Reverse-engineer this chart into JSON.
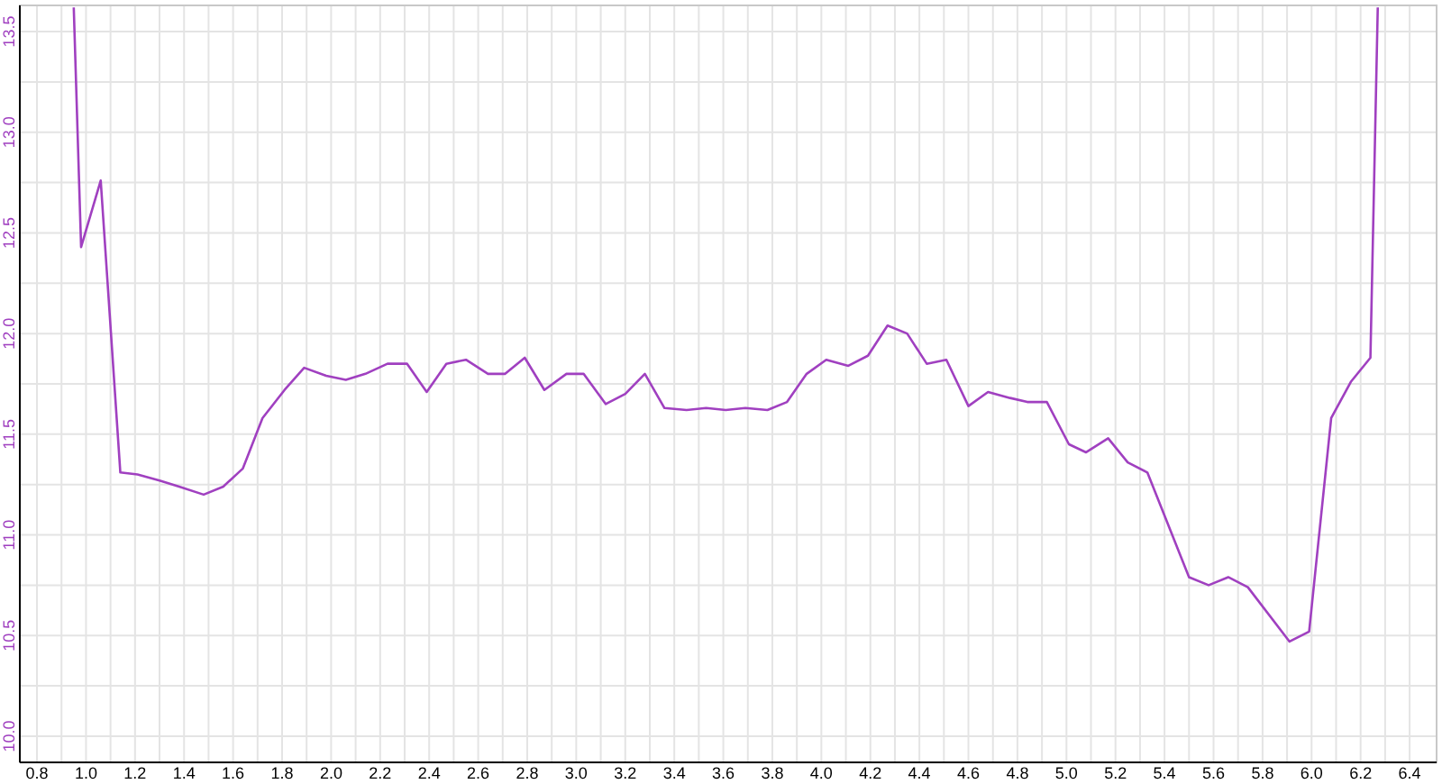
{
  "chart_data": {
    "type": "line",
    "xlim": [
      0.73,
      6.51
    ],
    "ylim": [
      9.87,
      13.63
    ],
    "xticks": [
      {
        "value": 0.8,
        "label": "0.8"
      },
      {
        "value": 0.9,
        "label": null
      },
      {
        "value": 1.0,
        "label": "1.0"
      },
      {
        "value": 1.1,
        "label": null
      },
      {
        "value": 1.2,
        "label": "1.2"
      },
      {
        "value": 1.3,
        "label": null
      },
      {
        "value": 1.4,
        "label": "1.4"
      },
      {
        "value": 1.5,
        "label": null
      },
      {
        "value": 1.6,
        "label": "1.6"
      },
      {
        "value": 1.7,
        "label": null
      },
      {
        "value": 1.8,
        "label": "1.8"
      },
      {
        "value": 1.9,
        "label": null
      },
      {
        "value": 2.0,
        "label": "2.0"
      },
      {
        "value": 2.1,
        "label": null
      },
      {
        "value": 2.2,
        "label": "2.2"
      },
      {
        "value": 2.3,
        "label": null
      },
      {
        "value": 2.4,
        "label": "2.4"
      },
      {
        "value": 2.5,
        "label": null
      },
      {
        "value": 2.6,
        "label": "2.6"
      },
      {
        "value": 2.7,
        "label": null
      },
      {
        "value": 2.8,
        "label": "2.8"
      },
      {
        "value": 2.9,
        "label": null
      },
      {
        "value": 3.0,
        "label": "3.0"
      },
      {
        "value": 3.1,
        "label": null
      },
      {
        "value": 3.2,
        "label": "3.2"
      },
      {
        "value": 3.3,
        "label": null
      },
      {
        "value": 3.4,
        "label": "3.4"
      },
      {
        "value": 3.5,
        "label": null
      },
      {
        "value": 3.6,
        "label": "3.6"
      },
      {
        "value": 3.7,
        "label": null
      },
      {
        "value": 3.8,
        "label": "3.8"
      },
      {
        "value": 3.9,
        "label": null
      },
      {
        "value": 4.0,
        "label": "4.0"
      },
      {
        "value": 4.1,
        "label": null
      },
      {
        "value": 4.2,
        "label": "4.2"
      },
      {
        "value": 4.3,
        "label": null
      },
      {
        "value": 4.4,
        "label": "4.4"
      },
      {
        "value": 4.5,
        "label": null
      },
      {
        "value": 4.6,
        "label": "4.6"
      },
      {
        "value": 4.7,
        "label": null
      },
      {
        "value": 4.8,
        "label": "4.8"
      },
      {
        "value": 4.9,
        "label": null
      },
      {
        "value": 5.0,
        "label": "5.0"
      },
      {
        "value": 5.1,
        "label": null
      },
      {
        "value": 5.2,
        "label": "5.2"
      },
      {
        "value": 5.3,
        "label": null
      },
      {
        "value": 5.4,
        "label": "5.4"
      },
      {
        "value": 5.5,
        "label": null
      },
      {
        "value": 5.6,
        "label": "5.6"
      },
      {
        "value": 5.7,
        "label": null
      },
      {
        "value": 5.8,
        "label": "5.8"
      },
      {
        "value": 5.9,
        "label": null
      },
      {
        "value": 6.0,
        "label": "6.0"
      },
      {
        "value": 6.1,
        "label": null
      },
      {
        "value": 6.2,
        "label": "6.2"
      },
      {
        "value": 6.3,
        "label": null
      },
      {
        "value": 6.4,
        "label": "6.4"
      }
    ],
    "yticks": [
      {
        "value": 10.0,
        "label": "10.0"
      },
      {
        "value": 10.25,
        "label": null
      },
      {
        "value": 10.5,
        "label": "10.5"
      },
      {
        "value": 10.75,
        "label": null
      },
      {
        "value": 11.0,
        "label": "11.0"
      },
      {
        "value": 11.25,
        "label": null
      },
      {
        "value": 11.5,
        "label": "11.5"
      },
      {
        "value": 11.75,
        "label": null
      },
      {
        "value": 12.0,
        "label": "12.0"
      },
      {
        "value": 12.25,
        "label": null
      },
      {
        "value": 12.5,
        "label": "12.5"
      },
      {
        "value": 12.75,
        "label": null
      },
      {
        "value": 13.0,
        "label": "13.0"
      },
      {
        "value": 13.25,
        "label": null
      },
      {
        "value": 13.5,
        "label": "13.5"
      }
    ],
    "grid": true,
    "marker": "none",
    "line_style": "solid",
    "series": [
      {
        "color": "#a040c0",
        "x": [
          0.95,
          0.98,
          1.06,
          1.14,
          1.21,
          1.3,
          1.38,
          1.48,
          1.56,
          1.64,
          1.72,
          1.81,
          1.89,
          1.98,
          2.06,
          2.14,
          2.23,
          2.31,
          2.39,
          2.47,
          2.55,
          2.64,
          2.71,
          2.79,
          2.87,
          2.96,
          3.03,
          3.12,
          3.2,
          3.28,
          3.36,
          3.45,
          3.53,
          3.61,
          3.69,
          3.78,
          3.86,
          3.94,
          4.02,
          4.11,
          4.19,
          4.27,
          4.35,
          4.43,
          4.51,
          4.6,
          4.68,
          4.77,
          4.84,
          4.92,
          5.01,
          5.08,
          5.17,
          5.25,
          5.33,
          5.5,
          5.58,
          5.66,
          5.74,
          5.91,
          5.99,
          6.08,
          6.16,
          6.24,
          6.27
        ],
        "values": [
          13.62,
          12.43,
          12.76,
          11.31,
          11.3,
          11.27,
          11.24,
          11.2,
          11.24,
          11.33,
          11.58,
          11.72,
          11.83,
          11.79,
          11.77,
          11.8,
          11.85,
          11.85,
          11.71,
          11.85,
          11.87,
          11.8,
          11.8,
          11.88,
          11.72,
          11.8,
          11.8,
          11.65,
          11.7,
          11.8,
          11.63,
          11.62,
          11.63,
          11.62,
          11.63,
          11.62,
          11.66,
          11.8,
          11.87,
          11.84,
          11.89,
          12.04,
          12.0,
          11.85,
          11.87,
          11.64,
          11.71,
          11.68,
          11.66,
          11.66,
          11.45,
          11.41,
          11.48,
          11.36,
          11.31,
          10.79,
          10.75,
          10.79,
          10.74,
          10.47,
          10.52,
          11.58,
          11.76,
          11.88,
          13.62
        ]
      }
    ]
  }
}
